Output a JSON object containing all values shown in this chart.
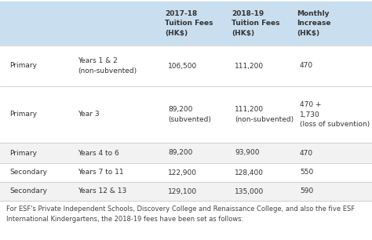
{
  "header_bg": "#c9dff0",
  "row_bg_white": "#ffffff",
  "row_bg_light": "#f2f2f2",
  "divider_color": "#cccccc",
  "text_color": "#333333",
  "footer_text_color": "#444444",
  "header_texts": [
    "2017-18\nTuition Fees\n(HK$)",
    "2018-19\nTuition Fees\n(HK$)",
    "Monthly\nIncrease\n(HK$)"
  ],
  "rows": [
    {
      "col0": "Primary",
      "col1": "Years 1 & 2\n(non-subvented)",
      "col2": "106,500",
      "col3": "111,200",
      "col4": "470",
      "bg": "#ffffff"
    },
    {
      "col0": "Primary",
      "col1": "Year 3",
      "col2": "89,200\n(subvented)",
      "col3": "111,200\n(non-subvented)",
      "col4": "470 +\n1,730\n(loss of subvention)",
      "bg": "#ffffff"
    },
    {
      "col0": "Primary",
      "col1": "Years 4 to 6",
      "col2": "89,200",
      "col3": "93,900",
      "col4": "470",
      "bg": "#f2f2f2"
    },
    {
      "col0": "Secondary",
      "col1": "Years 7 to 11",
      "col2": "122,900",
      "col3": "128,400",
      "col4": "550",
      "bg": "#ffffff"
    },
    {
      "col0": "Secondary",
      "col1": "Years 12 & 13",
      "col2": "129,100",
      "col3": "135,000",
      "col4": "590",
      "bg": "#f2f2f2"
    }
  ],
  "footer": "For ESF's Private Independent Schools, Discovery College and Renaissance College, and also the five ESF\nInternational Kindergartens, the 2018-19 fees have been set as follows:",
  "figsize": [
    4.74,
    3.06
  ],
  "dpi": 100
}
